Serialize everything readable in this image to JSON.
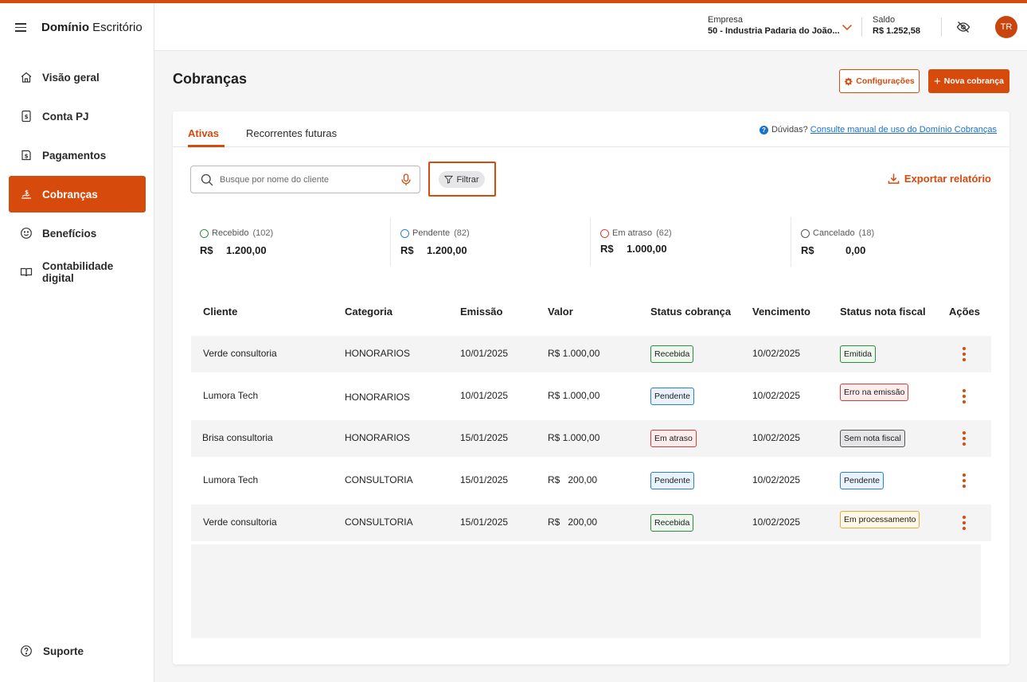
{
  "brand": {
    "bold": "Domínio",
    "light": "Escritório"
  },
  "nav": [
    {
      "label": "Visão geral",
      "icon": "home-icon",
      "active": false
    },
    {
      "label": "Conta PJ",
      "icon": "account-icon",
      "active": false
    },
    {
      "label": "Pagamentos",
      "icon": "payments-icon",
      "active": false
    },
    {
      "label": "Cobranças",
      "icon": "charges-icon",
      "active": true
    },
    {
      "label": "Benefícios",
      "icon": "smile-icon",
      "active": false
    },
    {
      "label": "Contabilidade digital",
      "icon": "book-icon",
      "active": false
    }
  ],
  "support": "Suporte",
  "header": {
    "company_label": "Empresa",
    "company_value": "50 - Industria Padaria do João...",
    "balance_label": "Saldo",
    "balance_value": "R$ 1.252,58",
    "avatar": "TR"
  },
  "page": {
    "title": "Cobranças",
    "config_button": "Configurações",
    "new_button": "Nova cobrança"
  },
  "tabs": [
    {
      "label": "Ativas"
    },
    {
      "label": "Recorrentes futuras"
    }
  ],
  "help": {
    "text": "Dúvidas?",
    "link": "Consulte manual de uso do Domínio Cobranças"
  },
  "search": {
    "placeholder": "Busque por nome do cliente"
  },
  "filter_label": "Filtrar",
  "export_label": "Exportar relatório",
  "summary": [
    {
      "label": "Recebido",
      "count": "(102)",
      "currency": "R$",
      "amount": "1.200,00",
      "color": "#2e8a3e"
    },
    {
      "label": "Pendente",
      "count": "(82)",
      "currency": "R$",
      "amount": "1.200,00",
      "color": "#2a7fd4"
    },
    {
      "label": "Em atraso",
      "count": "(62)",
      "currency": "R$",
      "amount": "1.000,00",
      "color": "#d63b3b"
    },
    {
      "label": "Cancelado",
      "count": "(18)",
      "currency": "R$",
      "amount": "0,00",
      "color": "#555555"
    }
  ],
  "table": {
    "headers": [
      "Cliente",
      "Categoria",
      "Emissão",
      "Valor",
      "Status cobrança",
      "Vencimento",
      "Status nota fiscal",
      "Ações"
    ],
    "rows": [
      {
        "cliente": "Verde consultoria",
        "categoria": "HONORARIOS",
        "emissao": "10/01/2025",
        "valor": "R$ 1.000,00",
        "status": "Recebida",
        "vencimento": "10/02/2025",
        "nota": "Emitida"
      },
      {
        "cliente": "Lumora Tech",
        "categoria": "HONORARIOS",
        "emissao": "10/01/2025",
        "valor": "R$ 1.000,00",
        "status": "Pendente",
        "vencimento": "10/02/2025",
        "nota": "Erro na emissão"
      },
      {
        "cliente": "Brisa consultoria",
        "categoria": "HONORARIOS",
        "emissao": "15/01/2025",
        "valor": "R$ 1.000,00",
        "status": "Em atraso",
        "vencimento": "10/02/2025",
        "nota": "Sem nota fiscal"
      },
      {
        "cliente": "Lumora Tech",
        "categoria": "CONSULTORIA",
        "emissao": "15/01/2025",
        "valor": "R$   200,00",
        "status": "Pendente",
        "vencimento": "10/02/2025",
        "nota": "Pendente"
      },
      {
        "cliente": "Verde consultoria",
        "categoria": "CONSULTORIA",
        "emissao": "15/01/2025",
        "valor": "R$   200,00",
        "status": "Recebida",
        "vencimento": "10/02/2025",
        "nota": "Em processamento"
      }
    ]
  },
  "colors": {
    "accent": "#d64a0c",
    "link": "#1a6fd1"
  }
}
